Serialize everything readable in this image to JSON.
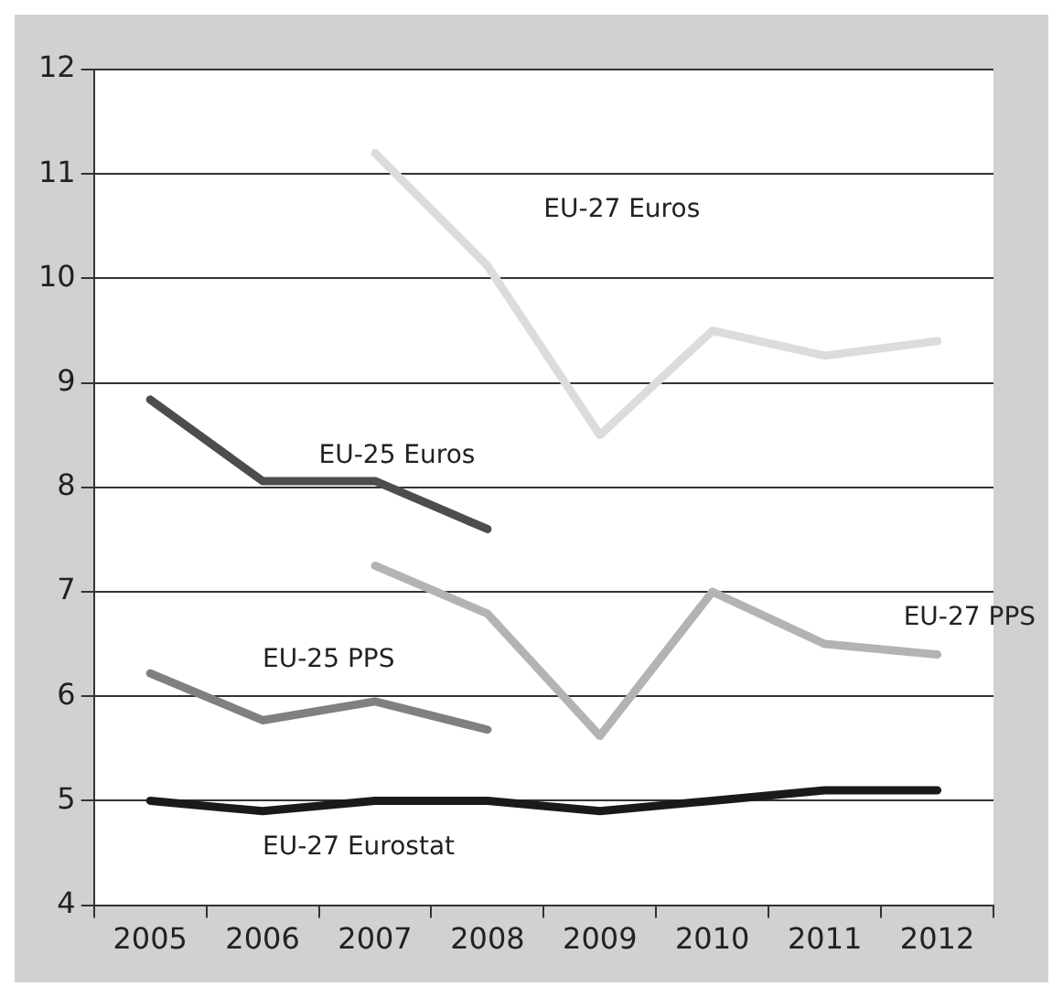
{
  "chart_data": {
    "type": "line",
    "categories": [
      "2005",
      "2006",
      "2007",
      "2008",
      "2009",
      "2010",
      "2011",
      "2012"
    ],
    "series": [
      {
        "name": "EU-27 Euros",
        "color": "#dcdcdc",
        "values": [
          null,
          null,
          11.2,
          10.12,
          8.5,
          9.5,
          9.26,
          9.4
        ]
      },
      {
        "name": "EU-25 Euros",
        "color": "#4d4d4d",
        "values": [
          8.84,
          8.06,
          8.06,
          7.6,
          null,
          null,
          null,
          null
        ]
      },
      {
        "name": "EU-27 PPS",
        "color": "#b3b3b3",
        "values": [
          null,
          null,
          7.25,
          6.79,
          5.62,
          7.0,
          6.5,
          6.4
        ]
      },
      {
        "name": "EU-25 PPS",
        "color": "#808080",
        "values": [
          6.22,
          5.77,
          5.95,
          5.68,
          null,
          null,
          null,
          null
        ]
      },
      {
        "name": "EU-27 Eurostat",
        "color": "#1a1a1a",
        "values": [
          5.0,
          4.9,
          5.0,
          5.0,
          4.9,
          5.0,
          5.1,
          5.1
        ]
      }
    ],
    "ylim": [
      4,
      12
    ],
    "yticks": [
      4,
      5,
      6,
      7,
      8,
      9,
      10,
      11,
      12
    ],
    "grid": "y",
    "legend": false,
    "marker": "none",
    "line_style": "solid"
  }
}
